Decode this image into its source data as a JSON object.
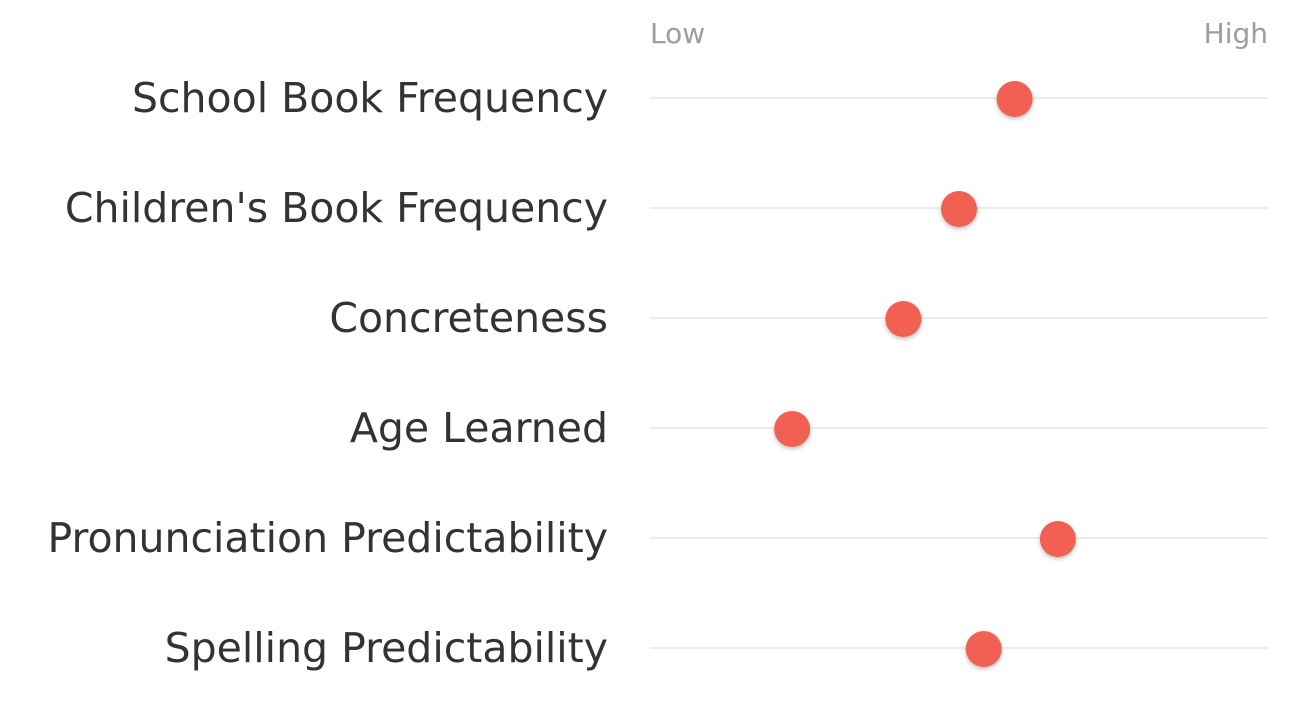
{
  "chart_data": {
    "type": "scatter",
    "scale_labels": {
      "low": "Low",
      "high": "High"
    },
    "xlim": [
      0,
      1
    ],
    "categories": [
      "School Book Frequency",
      "Children's Book Frequency",
      "Concreteness",
      "Age Learned",
      "Pronunciation Predictability",
      "Spelling Predictability"
    ],
    "values": [
      0.59,
      0.5,
      0.41,
      0.23,
      0.66,
      0.54
    ],
    "marker_color": "#f25f52",
    "gridline_color": "#d9d9d9",
    "grid": true
  }
}
